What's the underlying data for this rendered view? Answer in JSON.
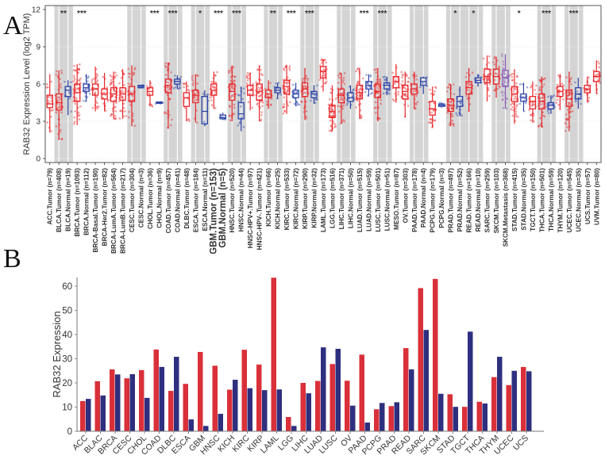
{
  "panels": {
    "a_letter": "A",
    "b_letter": "B"
  },
  "chart_data": [
    {
      "type": "box",
      "panel": "A",
      "ylabel": "RAB32 Expression Level (log2 TPM)",
      "ylim": [
        0,
        12
      ],
      "yticks": [
        0,
        3,
        6,
        9,
        12
      ],
      "colors": {
        "tumor": "#e8262a",
        "normal": "#2e45a8",
        "metastasis": "#8a5bb8",
        "shade": "#d4d4d4"
      },
      "groups": [
        {
          "label": "ACC.Tumor (n=79)",
          "kind": "tumor",
          "q1": 4.1,
          "median": 4.4,
          "q3": 5.1,
          "min": 2.1,
          "max": 6.8,
          "shade": false,
          "sig": ""
        },
        {
          "label": "BLCA.Tumor (n=408)",
          "kind": "tumor",
          "q1": 3.9,
          "median": 4.5,
          "q3": 5.2,
          "min": 1.5,
          "max": 7.1,
          "shade": true,
          "sig": "**"
        },
        {
          "label": "BLCA.Normal (n=19)",
          "kind": "normal",
          "q1": 5.0,
          "median": 5.5,
          "q3": 5.8,
          "min": 3.5,
          "max": 6.3,
          "shade": true,
          "sig": ""
        },
        {
          "label": "BRCA.Tumor (n=1093)",
          "kind": "tumor",
          "q1": 4.6,
          "median": 5.3,
          "q3": 6.0,
          "min": 2.7,
          "max": 7.6,
          "shade": false,
          "sig": "***"
        },
        {
          "label": "BRCA.Normal (n=112)",
          "kind": "normal",
          "q1": 5.4,
          "median": 5.7,
          "q3": 6.0,
          "min": 4.6,
          "max": 6.8,
          "shade": false,
          "sig": ""
        },
        {
          "label": "BRCA-Basal.Tumor (n=190)",
          "kind": "tumor",
          "q1": 5.1,
          "median": 5.6,
          "q3": 6.0,
          "min": 3.8,
          "max": 7.4,
          "shade": false,
          "sig": ""
        },
        {
          "label": "BRCA-Her2.Tumor (n=82)",
          "kind": "tumor",
          "q1": 4.8,
          "median": 5.2,
          "q3": 5.6,
          "min": 3.8,
          "max": 6.9,
          "shade": false,
          "sig": ""
        },
        {
          "label": "BRCA-LumA.Tumor (n=564)",
          "kind": "tumor",
          "q1": 4.6,
          "median": 5.2,
          "q3": 5.7,
          "min": 3.2,
          "max": 7.0,
          "shade": false,
          "sig": ""
        },
        {
          "label": "BRCA-LumB.Tumor (n=217)",
          "kind": "tumor",
          "q1": 4.7,
          "median": 5.2,
          "q3": 5.7,
          "min": 3.2,
          "max": 7.2,
          "shade": false,
          "sig": ""
        },
        {
          "label": "CESC.Tumor (n=304)",
          "kind": "tumor",
          "q1": 4.6,
          "median": 5.2,
          "q3": 5.8,
          "min": 2.6,
          "max": 7.5,
          "shade": true,
          "sig": ""
        },
        {
          "label": "CESC.Normal (n=3)",
          "kind": "normal",
          "q1": 5.7,
          "median": 5.8,
          "q3": 5.9,
          "min": 5.7,
          "max": 5.9,
          "shade": true,
          "sig": ""
        },
        {
          "label": "CHOL.Tumor (n=36)",
          "kind": "tumor",
          "q1": 5.1,
          "median": 5.4,
          "q3": 5.7,
          "min": 4.2,
          "max": 6.3,
          "shade": false,
          "sig": "***"
        },
        {
          "label": "CHOL.Normal (n=9)",
          "kind": "normal",
          "q1": 4.45,
          "median": 4.5,
          "q3": 4.55,
          "min": 4.4,
          "max": 4.6,
          "shade": false,
          "sig": ""
        },
        {
          "label": "COAD.Tumor (n=457)",
          "kind": "tumor",
          "q1": 5.3,
          "median": 5.9,
          "q3": 6.4,
          "min": 2.4,
          "max": 7.7,
          "shade": true,
          "sig": "***"
        },
        {
          "label": "COAD.Normal (n=41)",
          "kind": "normal",
          "q1": 6.0,
          "median": 6.2,
          "q3": 6.4,
          "min": 5.6,
          "max": 6.7,
          "shade": true,
          "sig": ""
        },
        {
          "label": "DLBC.Tumor (n=48)",
          "kind": "tumor",
          "q1": 4.2,
          "median": 4.9,
          "q3": 5.3,
          "min": 3.0,
          "max": 6.2,
          "shade": false,
          "sig": ""
        },
        {
          "label": "ESCA.Tumor (n=184)",
          "kind": "tumor",
          "q1": 4.5,
          "median": 5.1,
          "q3": 5.5,
          "min": 2.9,
          "max": 6.8,
          "shade": true,
          "sig": "*"
        },
        {
          "label": "ESCA.Normal (n=11)",
          "kind": "normal",
          "q1": 2.8,
          "median": 3.8,
          "q3": 5.0,
          "min": 2.6,
          "max": 5.5,
          "shade": true,
          "sig": ""
        },
        {
          "label": "GBM.Tumor (n=153)",
          "kind": "tumor",
          "q1": 5.1,
          "median": 5.5,
          "q3": 6.0,
          "min": 4.0,
          "max": 7.0,
          "shade": false,
          "sig": "***",
          "highlight": true
        },
        {
          "label": "GBM.Normal (n=5)",
          "kind": "normal",
          "q1": 3.2,
          "median": 3.3,
          "q3": 3.5,
          "min": 3.1,
          "max": 3.7,
          "shade": false,
          "sig": "",
          "highlight": true
        },
        {
          "label": "HNSC.Tumor (n=520)",
          "kind": "tumor",
          "q1": 4.7,
          "median": 5.4,
          "q3": 6.0,
          "min": 3.0,
          "max": 7.5,
          "shade": true,
          "sig": "***"
        },
        {
          "label": "HNSC.Normal (n=44)",
          "kind": "normal",
          "q1": 3.2,
          "median": 3.6,
          "q3": 4.5,
          "min": 2.2,
          "max": 5.8,
          "shade": true,
          "sig": ""
        },
        {
          "label": "HNSC-HPV+.Tumor (n=97)",
          "kind": "tumor",
          "q1": 5.1,
          "median": 5.5,
          "q3": 5.9,
          "min": 3.9,
          "max": 6.9,
          "shade": false,
          "sig": ""
        },
        {
          "label": "HNSC-HPV-.Tumor (n=421)",
          "kind": "tumor",
          "q1": 4.7,
          "median": 5.4,
          "q3": 6.0,
          "min": 3.0,
          "max": 7.5,
          "shade": false,
          "sig": ""
        },
        {
          "label": "KICH.Tumor (n=66)",
          "kind": "tumor",
          "q1": 4.9,
          "median": 5.2,
          "q3": 5.5,
          "min": 4.0,
          "max": 6.3,
          "shade": true,
          "sig": "**"
        },
        {
          "label": "KICH.Normal (n=25)",
          "kind": "normal",
          "q1": 5.3,
          "median": 5.5,
          "q3": 5.7,
          "min": 4.8,
          "max": 6.1,
          "shade": true,
          "sig": ""
        },
        {
          "label": "KIRC.Tumor (n=533)",
          "kind": "tumor",
          "q1": 5.2,
          "median": 5.8,
          "q3": 6.3,
          "min": 3.6,
          "max": 7.5,
          "shade": false,
          "sig": "***"
        },
        {
          "label": "KIRC.Normal (n=72)",
          "kind": "normal",
          "q1": 4.9,
          "median": 5.2,
          "q3": 5.5,
          "min": 4.2,
          "max": 6.1,
          "shade": false,
          "sig": ""
        },
        {
          "label": "KIRP.Tumor (n=290)",
          "kind": "tumor",
          "q1": 5.0,
          "median": 5.6,
          "q3": 6.1,
          "min": 3.1,
          "max": 7.3,
          "shade": true,
          "sig": "***"
        },
        {
          "label": "KIRP.Normal (n=32)",
          "kind": "normal",
          "q1": 4.9,
          "median": 5.2,
          "q3": 5.4,
          "min": 4.4,
          "max": 5.9,
          "shade": true,
          "sig": ""
        },
        {
          "label": "LAML.Tumor (n=173)",
          "kind": "tumor",
          "q1": 6.5,
          "median": 7.0,
          "q3": 7.4,
          "min": 5.4,
          "max": 8.0,
          "shade": false,
          "sig": ""
        },
        {
          "label": "LGG.Tumor (n=516)",
          "kind": "tumor",
          "q1": 3.3,
          "median": 3.8,
          "q3": 4.3,
          "min": 2.2,
          "max": 5.9,
          "shade": false,
          "sig": ""
        },
        {
          "label": "LIHC.Tumor (n=371)",
          "kind": "tumor",
          "q1": 4.5,
          "median": 5.1,
          "q3": 5.6,
          "min": 2.8,
          "max": 6.9,
          "shade": true,
          "sig": ""
        },
        {
          "label": "LIHC.Normal (n=50)",
          "kind": "normal",
          "q1": 4.6,
          "median": 4.9,
          "q3": 5.3,
          "min": 4.0,
          "max": 5.9,
          "shade": true,
          "sig": ""
        },
        {
          "label": "LUAD.Tumor (n=515)",
          "kind": "tumor",
          "q1": 4.8,
          "median": 5.3,
          "q3": 5.9,
          "min": 3.2,
          "max": 7.3,
          "shade": false,
          "sig": "***"
        },
        {
          "label": "LUAD.Normal (n=59)",
          "kind": "normal",
          "q1": 5.6,
          "median": 5.9,
          "q3": 6.2,
          "min": 5.0,
          "max": 6.8,
          "shade": false,
          "sig": ""
        },
        {
          "label": "LUSC.Tumor (n=501)",
          "kind": "tumor",
          "q1": 4.9,
          "median": 5.4,
          "q3": 6.0,
          "min": 3.0,
          "max": 7.3,
          "shade": true,
          "sig": "***"
        },
        {
          "label": "LUSC.Normal (n=51)",
          "kind": "normal",
          "q1": 5.6,
          "median": 5.9,
          "q3": 6.1,
          "min": 5.1,
          "max": 6.6,
          "shade": true,
          "sig": ""
        },
        {
          "label": "MESO.Tumor (n=87)",
          "kind": "tumor",
          "q1": 5.7,
          "median": 6.2,
          "q3": 6.6,
          "min": 4.5,
          "max": 7.6,
          "shade": false,
          "sig": ""
        },
        {
          "label": "OV.Tumor (n=303)",
          "kind": "tumor",
          "q1": 4.8,
          "median": 5.4,
          "q3": 5.9,
          "min": 3.3,
          "max": 7.0,
          "shade": false,
          "sig": ""
        },
        {
          "label": "PAAD.Tumor (n=178)",
          "kind": "tumor",
          "q1": 5.2,
          "median": 5.6,
          "q3": 6.0,
          "min": 4.0,
          "max": 7.0,
          "shade": true,
          "sig": ""
        },
        {
          "label": "PAAD.Normal (n=4)",
          "kind": "normal",
          "q1": 5.9,
          "median": 6.2,
          "q3": 6.5,
          "min": 5.2,
          "max": 6.6,
          "shade": true,
          "sig": ""
        },
        {
          "label": "PCPG.Tumor (n=179)",
          "kind": "tumor",
          "q1": 3.5,
          "median": 4.0,
          "q3": 4.6,
          "min": 2.5,
          "max": 5.8,
          "shade": false,
          "sig": ""
        },
        {
          "label": "PCPG.Normal (n=3)",
          "kind": "normal",
          "q1": 4.2,
          "median": 4.3,
          "q3": 4.4,
          "min": 4.1,
          "max": 4.5,
          "shade": false,
          "sig": ""
        },
        {
          "label": "PRAD.Tumor (n=497)",
          "kind": "tumor",
          "q1": 3.8,
          "median": 4.3,
          "q3": 4.8,
          "min": 2.6,
          "max": 6.0,
          "shade": true,
          "sig": "*"
        },
        {
          "label": "PRAD.Normal (n=52)",
          "kind": "normal",
          "q1": 4.2,
          "median": 4.6,
          "q3": 5.0,
          "min": 3.4,
          "max": 5.8,
          "shade": true,
          "sig": ""
        },
        {
          "label": "READ.Tumor (n=166)",
          "kind": "tumor",
          "q1": 5.2,
          "median": 5.7,
          "q3": 6.2,
          "min": 3.8,
          "max": 7.3,
          "shade": true,
          "sig": "*"
        },
        {
          "label": "READ.Normal (n=10)",
          "kind": "normal",
          "q1": 6.1,
          "median": 6.3,
          "q3": 6.5,
          "min": 5.8,
          "max": 6.8,
          "shade": true,
          "sig": ""
        },
        {
          "label": "SARC.Tumor (n=259)",
          "kind": "tumor",
          "q1": 6.1,
          "median": 6.6,
          "q3": 7.2,
          "min": 4.6,
          "max": 8.3,
          "shade": false,
          "sig": ""
        },
        {
          "label": "SKCM.Tumor (n=103)",
          "kind": "tumor",
          "q1": 6.0,
          "median": 6.6,
          "q3": 7.2,
          "min": 4.9,
          "max": 8.2,
          "shade": true,
          "sig": ""
        },
        {
          "label": "SKCM.Metastasis (n=368)",
          "kind": "metastasis",
          "q1": 5.8,
          "median": 6.5,
          "q3": 7.1,
          "min": 4.0,
          "max": 8.4,
          "shade": true,
          "sig": ""
        },
        {
          "label": "STAD.Tumor (n=415)",
          "kind": "tumor",
          "q1": 4.6,
          "median": 5.2,
          "q3": 5.8,
          "min": 2.8,
          "max": 7.2,
          "shade": false,
          "sig": "*"
        },
        {
          "label": "STAD.Normal (n=35)",
          "kind": "normal",
          "q1": 4.6,
          "median": 4.9,
          "q3": 5.2,
          "min": 3.8,
          "max": 6.1,
          "shade": false,
          "sig": ""
        },
        {
          "label": "TGCT.Tumor (n=150)",
          "kind": "tumor",
          "q1": 4.0,
          "median": 4.6,
          "q3": 5.0,
          "min": 2.9,
          "max": 6.2,
          "shade": false,
          "sig": ""
        },
        {
          "label": "THCA.Tumor (n=501)",
          "kind": "tumor",
          "q1": 4.0,
          "median": 4.6,
          "q3": 5.2,
          "min": 2.5,
          "max": 6.6,
          "shade": true,
          "sig": "***"
        },
        {
          "label": "THCA.Normal (n=59)",
          "kind": "normal",
          "q1": 4.0,
          "median": 4.3,
          "q3": 4.5,
          "min": 3.6,
          "max": 5.1,
          "shade": true,
          "sig": ""
        },
        {
          "label": "THYM.Tumor (n=120)",
          "kind": "tumor",
          "q1": 5.0,
          "median": 5.4,
          "q3": 5.8,
          "min": 3.9,
          "max": 6.8,
          "shade": false,
          "sig": ""
        },
        {
          "label": "UCEC.Tumor (n=545)",
          "kind": "tumor",
          "q1": 4.2,
          "median": 4.8,
          "q3": 5.5,
          "min": 2.2,
          "max": 7.0,
          "shade": true,
          "sig": "***"
        },
        {
          "label": "UCEC.Normal (n=35)",
          "kind": "normal",
          "q1": 4.8,
          "median": 5.2,
          "q3": 5.7,
          "min": 4.0,
          "max": 6.5,
          "shade": true,
          "sig": ""
        },
        {
          "label": "UCS.Tumor (n=57)",
          "kind": "tumor",
          "q1": 5.3,
          "median": 5.6,
          "q3": 5.9,
          "min": 4.5,
          "max": 6.6,
          "shade": false,
          "sig": ""
        },
        {
          "label": "UVM.Tumor (n=80)",
          "kind": "tumor",
          "q1": 6.2,
          "median": 6.6,
          "q3": 7.0,
          "min": 5.2,
          "max": 7.9,
          "shade": false,
          "sig": ""
        }
      ]
    },
    {
      "type": "bar",
      "panel": "B",
      "title": "",
      "xlabel": "",
      "ylabel": "RAB32 Expression",
      "ylim": [
        0,
        63
      ],
      "yticks": [
        0,
        10,
        20,
        30,
        40,
        50,
        60
      ],
      "categories": [
        "ACC",
        "BLAC",
        "BRCA",
        "CESC",
        "CHOL",
        "COAD",
        "DLBC",
        "ESCA",
        "GBM",
        "HNSC",
        "KICH",
        "KIRC",
        "KIRP",
        "LAML",
        "LGG",
        "LIHC",
        "LUAD",
        "LUSC",
        "OV",
        "PAAD",
        "PCPG",
        "PRAD",
        "READ",
        "SARC",
        "SKCM",
        "STAD",
        "TGCT",
        "THCA",
        "THYM",
        "UCEC",
        "UCS"
      ],
      "series": [
        {
          "name": "red-series",
          "color": "#d9303a",
          "values": [
            12.5,
            20.7,
            25.6,
            21.9,
            25.3,
            33.8,
            16.7,
            19.6,
            32.8,
            27.1,
            17.2,
            33.7,
            27.6,
            63.5,
            5.9,
            20.0,
            20.8,
            27.8,
            20.9,
            31.7,
            9.1,
            10.4,
            34.4,
            59.2,
            63.0,
            15.3,
            10.1,
            12.2,
            22.4,
            19.1,
            26.6
          ]
        },
        {
          "name": "blue-series",
          "color": "#2f2f7f",
          "values": [
            13.4,
            14.8,
            23.5,
            23.6,
            13.8,
            26.6,
            30.8,
            4.9,
            2.2,
            7.2,
            21.3,
            17.8,
            17.0,
            17.3,
            2.2,
            15.7,
            34.7,
            34.1,
            10.6,
            3.6,
            11.7,
            12.0,
            25.6,
            41.9,
            15.5,
            10.1,
            41.2,
            11.5,
            30.8,
            25.0,
            24.8
          ]
        }
      ],
      "legend": "none",
      "grid": false
    }
  ]
}
